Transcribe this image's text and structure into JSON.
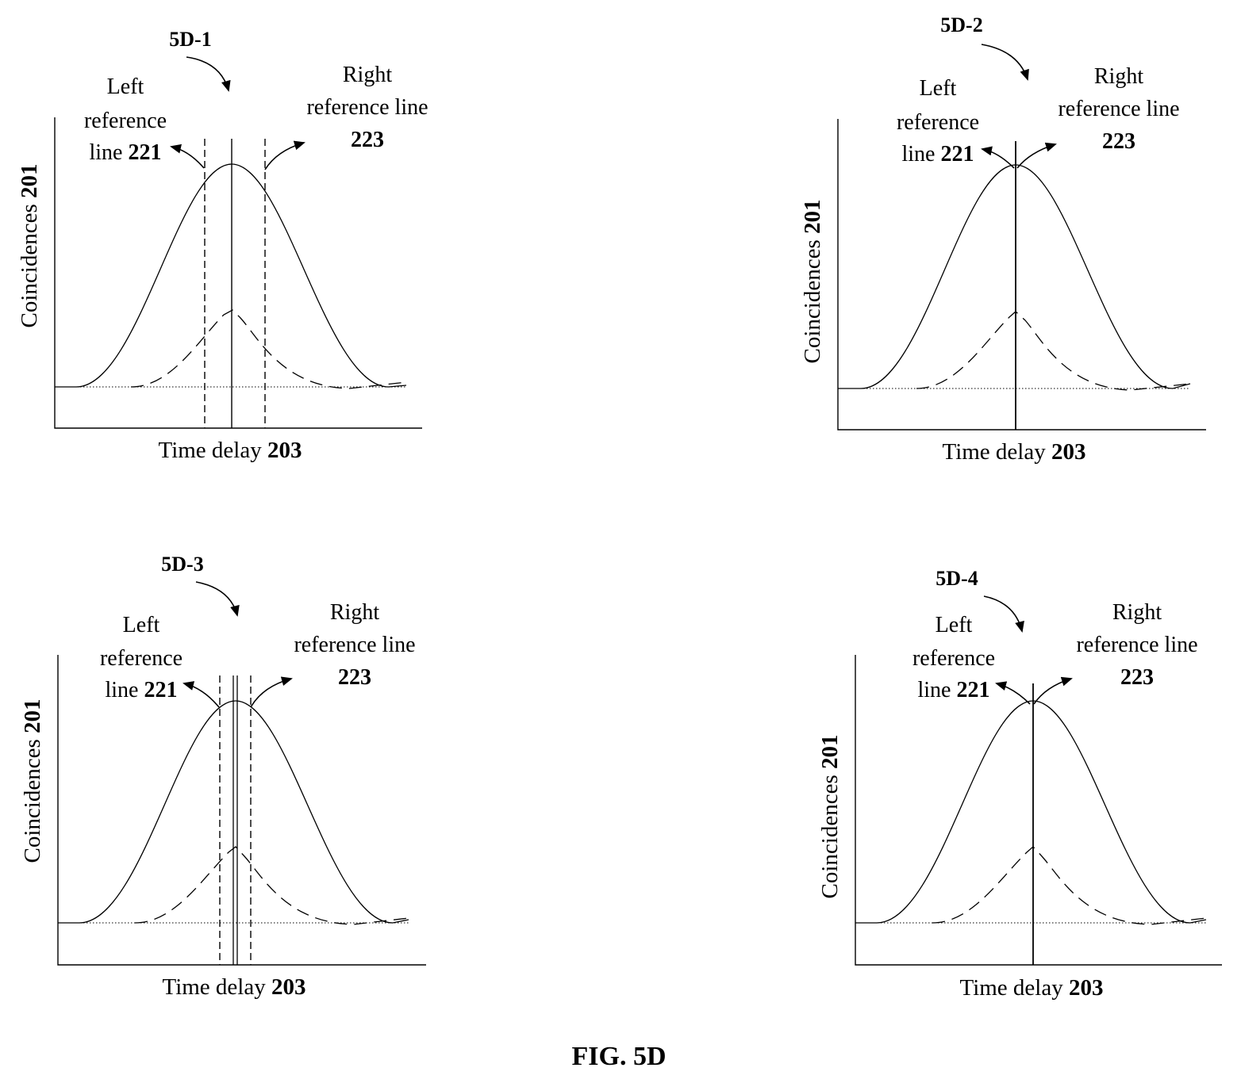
{
  "figure": {
    "caption": "FIG. 5D",
    "panels": [
      {
        "id": "5D-1",
        "ylabel": {
          "text": "Coincidences ",
          "num": "201"
        },
        "xlabel": {
          "text": "Time delay ",
          "num": "203"
        },
        "left_annot": {
          "l1": "Left",
          "l2": "reference",
          "l3": "line ",
          "num": "221"
        },
        "right_annot": {
          "l1": "Right",
          "l2": "reference line",
          "num": "223"
        }
      },
      {
        "id": "5D-2",
        "ylabel": {
          "text": "Coincidences ",
          "num": "201"
        },
        "xlabel": {
          "text": "Time delay ",
          "num": "203"
        },
        "left_annot": {
          "l1": "Left",
          "l2": "reference",
          "l3": "line ",
          "num": "221"
        },
        "right_annot": {
          "l1": "Right",
          "l2": "reference line",
          "num": "223"
        }
      },
      {
        "id": "5D-3",
        "ylabel": {
          "text": "Coincidences ",
          "num": "201"
        },
        "xlabel": {
          "text": "Time delay ",
          "num": "203"
        },
        "left_annot": {
          "l1": "Left",
          "l2": "reference",
          "l3": "line ",
          "num": "221"
        },
        "right_annot": {
          "l1": "Right",
          "l2": "reference line",
          "num": "223"
        }
      },
      {
        "id": "5D-4",
        "ylabel": {
          "text": "Coincidences ",
          "num": "201"
        },
        "xlabel": {
          "text": "Time delay ",
          "num": "203"
        },
        "left_annot": {
          "l1": "Left",
          "l2": "reference",
          "l3": "line ",
          "num": "221"
        },
        "right_annot": {
          "l1": "Right",
          "l2": "reference line",
          "num": "223"
        }
      }
    ]
  }
}
